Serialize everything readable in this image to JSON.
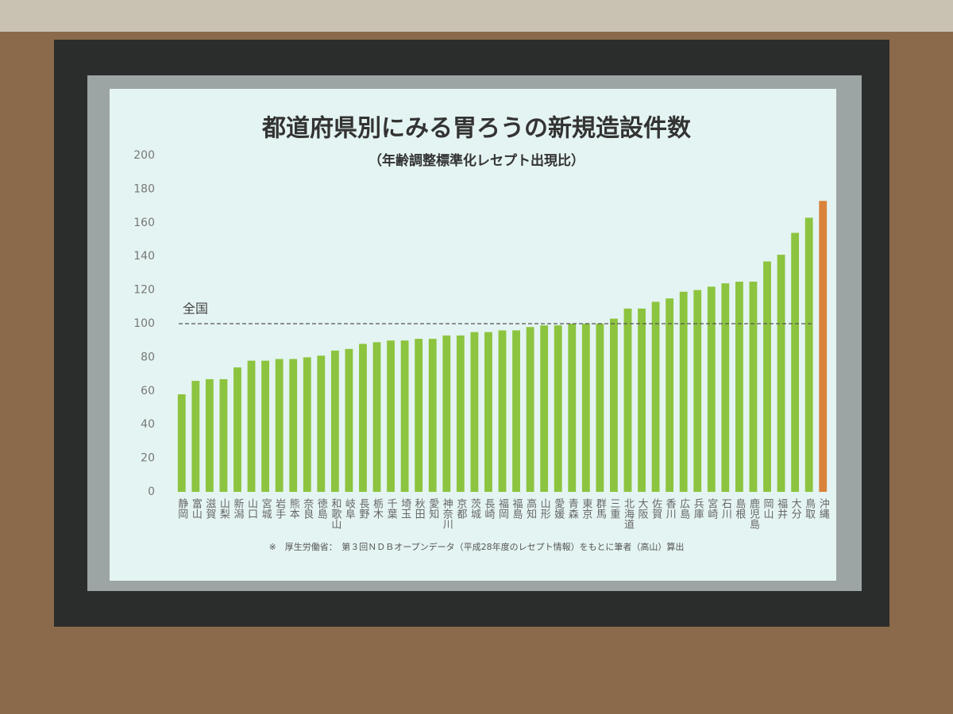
{
  "chart_data": {
    "type": "bar",
    "title": "都道府県別にみる胃ろうの新規造設件数",
    "subtitle": "（年齢調整標準化レセプト出現比）",
    "categories": [
      "静岡",
      "富山",
      "滋賀",
      "山梨",
      "新潟",
      "山口",
      "宮城",
      "岩手",
      "熊本",
      "奈良",
      "徳島",
      "和歌山",
      "岐阜",
      "長野",
      "栃木",
      "千葉",
      "埼玉",
      "秋田",
      "愛知",
      "神奈川",
      "京都",
      "茨城",
      "長崎",
      "福岡",
      "福島",
      "高知",
      "山形",
      "愛媛",
      "青森",
      "東京",
      "群馬",
      "三重",
      "北海道",
      "大阪",
      "佐賀",
      "香川",
      "広島",
      "兵庫",
      "宮崎",
      "石川",
      "島根",
      "鹿児島",
      "岡山",
      "福井",
      "大分",
      "鳥取",
      "沖縄"
    ],
    "values": [
      58,
      66,
      67,
      67,
      74,
      78,
      78,
      79,
      79,
      80,
      81,
      84,
      85,
      88,
      89,
      90,
      90,
      91,
      91,
      93,
      93,
      95,
      95,
      96,
      96,
      98,
      99,
      99,
      100,
      100,
      100,
      103,
      109,
      109,
      113,
      115,
      119,
      120,
      122,
      124,
      125,
      125,
      137,
      141,
      154,
      163,
      173
    ],
    "colors": [
      "#8cc43f",
      "#8cc43f",
      "#8cc43f",
      "#8cc43f",
      "#8cc43f",
      "#8cc43f",
      "#8cc43f",
      "#8cc43f",
      "#8cc43f",
      "#8cc43f",
      "#8cc43f",
      "#8cc43f",
      "#8cc43f",
      "#8cc43f",
      "#8cc43f",
      "#8cc43f",
      "#8cc43f",
      "#8cc43f",
      "#8cc43f",
      "#8cc43f",
      "#8cc43f",
      "#8cc43f",
      "#8cc43f",
      "#8cc43f",
      "#8cc43f",
      "#8cc43f",
      "#8cc43f",
      "#8cc43f",
      "#8cc43f",
      "#8cc43f",
      "#8cc43f",
      "#8cc43f",
      "#8cc43f",
      "#8cc43f",
      "#8cc43f",
      "#8cc43f",
      "#8cc43f",
      "#8cc43f",
      "#8cc43f",
      "#8cc43f",
      "#8cc43f",
      "#8cc43f",
      "#8cc43f",
      "#8cc43f",
      "#8cc43f",
      "#8cc43f",
      "#d9843a"
    ],
    "ylim": [
      0,
      200
    ],
    "yticks": [
      0,
      20,
      40,
      60,
      80,
      100,
      120,
      140,
      160,
      180,
      200
    ],
    "grid": false,
    "reference_line": {
      "label": "全国",
      "value": 100
    },
    "footnote": "※　厚生労働省：　第３回ＮＤＢオープンデータ（平成28年度のレセプト情報）をもとに筆者（高山）算出"
  }
}
